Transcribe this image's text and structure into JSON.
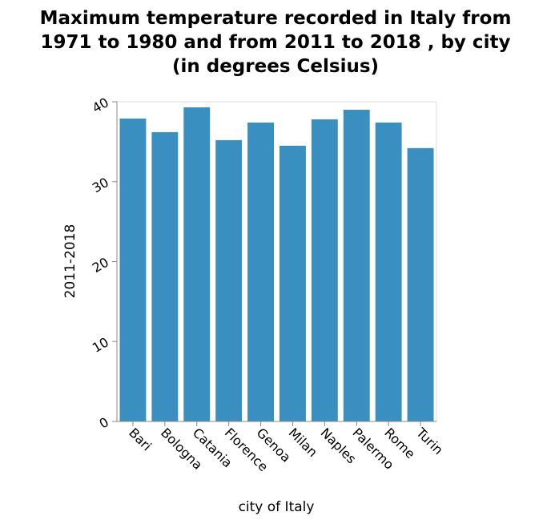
{
  "chart_data": {
    "type": "bar",
    "title": "Maximum temperature recorded in Italy from\n1971 to 1980 and from 2011 to 2018 , by city\n(in degrees Celsius)",
    "xlabel": "city of Italy",
    "ylabel": "2011-2018",
    "categories": [
      "Bari",
      "Bologna",
      "Catania",
      "Florence",
      "Genoa",
      "Milan",
      "Naples",
      "Palermo",
      "Rome",
      "Turin"
    ],
    "values": [
      37.9,
      36.2,
      39.3,
      35.2,
      37.4,
      34.5,
      37.8,
      39.0,
      37.4,
      34.2
    ],
    "ylim": [
      0,
      40
    ],
    "yticks": [
      0,
      10,
      20,
      30,
      40
    ],
    "bar_color": "#3a8fc1",
    "grid": false
  }
}
